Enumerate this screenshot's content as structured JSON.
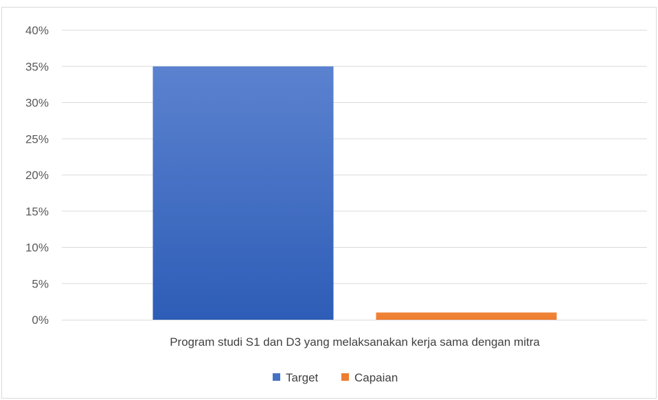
{
  "chart_data": {
    "type": "bar",
    "categories": [
      "Program studi S1 dan D3 yang melaksanakan kerja sama dengan mitra"
    ],
    "series": [
      {
        "name": "Target",
        "values": [
          35
        ],
        "color": "#4472c4"
      },
      {
        "name": "Capaian",
        "values": [
          1
        ],
        "color": "#ed7d31"
      }
    ],
    "ylim": [
      0,
      40
    ],
    "yticks": [
      "0%",
      "5%",
      "10%",
      "15%",
      "20%",
      "25%",
      "30%",
      "35%",
      "40%"
    ],
    "grid": true,
    "legend_position": "bottom"
  }
}
